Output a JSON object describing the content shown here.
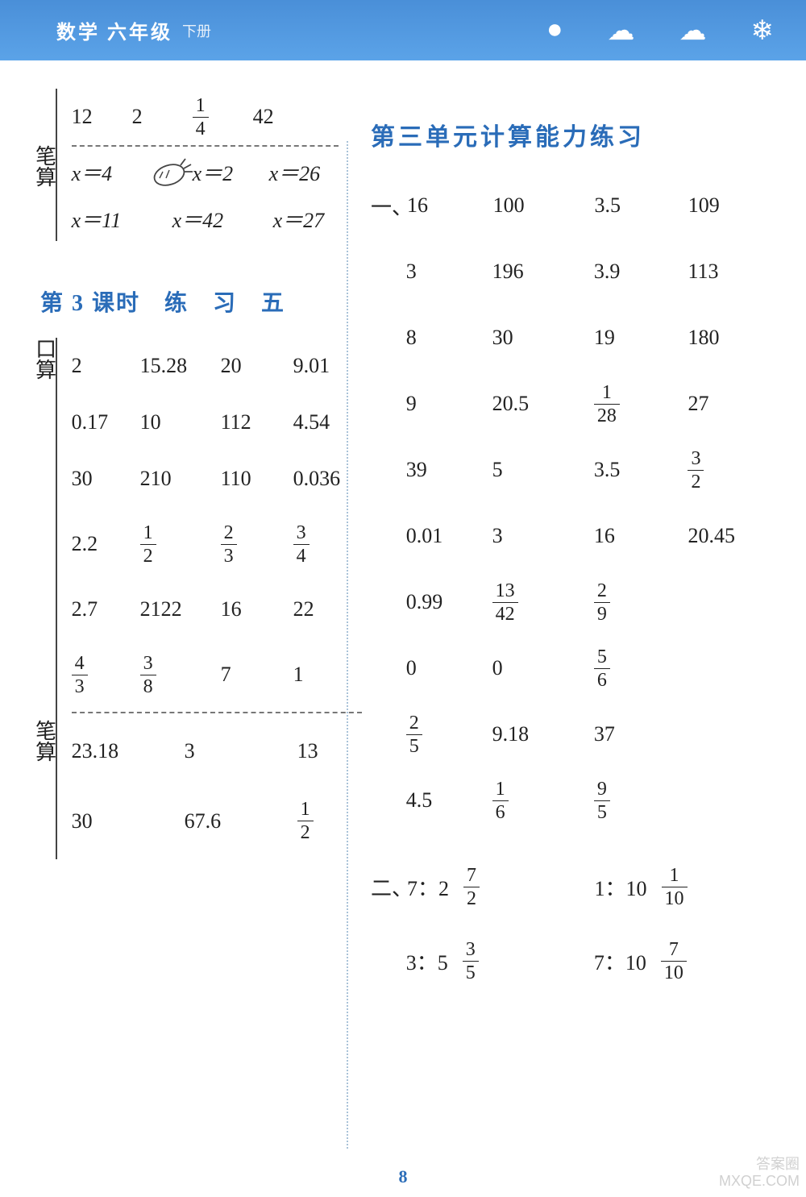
{
  "header": {
    "title": "数学 六年级",
    "subtitle": "下册"
  },
  "left": {
    "bisuan1": {
      "label": "笔算",
      "row1": [
        "12",
        "2",
        {
          "frac": [
            "1",
            "4"
          ]
        },
        "42"
      ],
      "row2": [
        "x＝4",
        "x＝2",
        "x＝26"
      ],
      "row3": [
        "x＝11",
        "x＝42",
        "x＝27"
      ]
    },
    "heading3": "第 3 课时　练　习　五",
    "kousuan": {
      "label": "口算",
      "rows": [
        [
          "2",
          "15.28",
          "20",
          "9.01"
        ],
        [
          "0.17",
          "10",
          "112",
          "4.54"
        ],
        [
          "30",
          "210",
          "110",
          "0.036"
        ],
        [
          "2.2",
          {
            "frac": [
              "1",
              "2"
            ]
          },
          {
            "frac": [
              "2",
              "3"
            ]
          },
          {
            "frac": [
              "3",
              "4"
            ]
          }
        ],
        [
          "2.7",
          "2122",
          "16",
          "22"
        ],
        [
          {
            "frac": [
              "4",
              "3"
            ]
          },
          {
            "frac": [
              "3",
              "8"
            ]
          },
          "7",
          "1"
        ]
      ]
    },
    "bisuan2": {
      "label": "笔算",
      "rows": [
        [
          "23.18",
          "3",
          "13"
        ],
        [
          "30",
          "67.6",
          {
            "frac": [
              "1",
              "2"
            ]
          }
        ]
      ]
    }
  },
  "right": {
    "heading": "第三单元计算能力练习",
    "marker1": "一、",
    "rows1": [
      [
        "16",
        "100",
        "3.5",
        "109"
      ],
      [
        "3",
        "196",
        "3.9",
        "113"
      ],
      [
        "8",
        "30",
        "19",
        "180"
      ],
      [
        "9",
        "20.5",
        {
          "frac": [
            "1",
            "28"
          ]
        },
        "27"
      ],
      [
        "39",
        "5",
        "3.5",
        {
          "frac": [
            "3",
            "2"
          ]
        }
      ],
      [
        "0.01",
        "3",
        "16",
        "20.45"
      ],
      [
        "0.99",
        {
          "frac": [
            "13",
            "42"
          ]
        },
        {
          "frac": [
            "2",
            "9"
          ]
        },
        ""
      ],
      [
        "0",
        "0",
        {
          "frac": [
            "5",
            "6"
          ]
        },
        ""
      ],
      [
        {
          "frac": [
            "2",
            "5"
          ]
        },
        "9.18",
        "37",
        ""
      ],
      [
        "4.5",
        {
          "frac": [
            "1",
            "6"
          ]
        },
        {
          "frac": [
            "9",
            "5"
          ]
        },
        ""
      ]
    ],
    "marker2": "二、",
    "rows2": [
      [
        {
          "pair": [
            "7：2",
            {
              "frac": [
                "7",
                "2"
              ]
            }
          ]
        },
        {
          "pair": [
            "1：10",
            {
              "frac": [
                "1",
                "10"
              ]
            }
          ]
        }
      ],
      [
        {
          "pair": [
            "3：5",
            {
              "frac": [
                "3",
                "5"
              ]
            }
          ]
        },
        {
          "pair": [
            "7：10",
            {
              "frac": [
                "7",
                "10"
              ]
            }
          ]
        }
      ]
    ]
  },
  "pageNumber": "8",
  "watermark": {
    "l1": "答案圈",
    "l2": "MXQE.COM"
  }
}
